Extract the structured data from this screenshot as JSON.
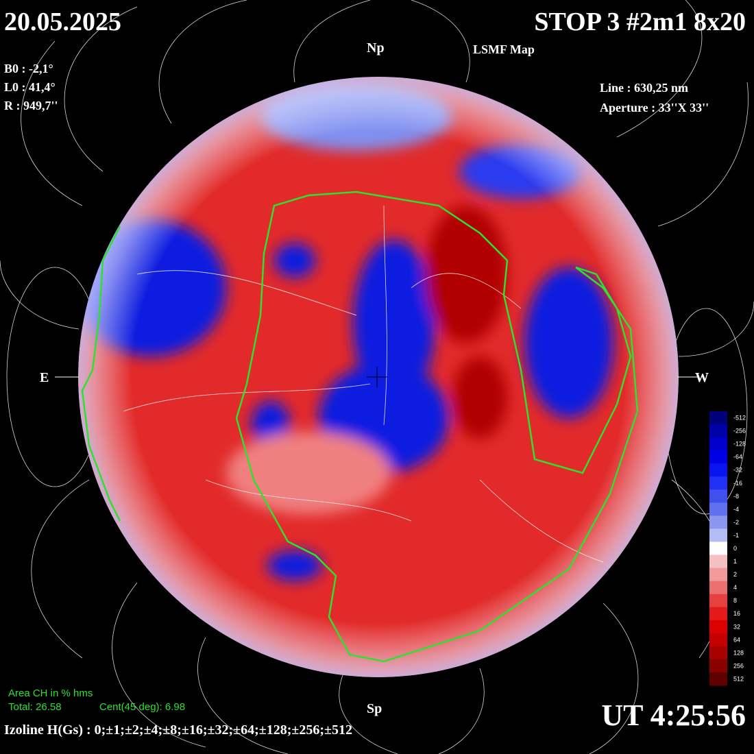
{
  "header": {
    "date": "20.05.2025",
    "title": "STOP 3 #2m1 8x20",
    "subtitle": "LSMF  Map",
    "b0": "B0 : -2,1°",
    "l0": "L0 : 41,4°",
    "r": "R  : 949,7''",
    "line": "Line :  630,25 nm",
    "aperture": "Aperture : 33''X 33''"
  },
  "directions": {
    "north": "Np",
    "south": "Sp",
    "east": "E",
    "west": "W"
  },
  "colorbar": {
    "labels": [
      -512,
      -256,
      -128,
      -64,
      -32,
      -16,
      -8,
      -4,
      -2,
      -1,
      0,
      1,
      2,
      4,
      8,
      16,
      32,
      64,
      128,
      256,
      512
    ],
    "colors": [
      "#00007a",
      "#0000a8",
      "#0000cc",
      "#0000e6",
      "#0a14f0",
      "#2030f5",
      "#4050f0",
      "#6070ee",
      "#8a96f0",
      "#b4bcf5",
      "#ffffff",
      "#f5c0c0",
      "#f09a9a",
      "#ec7070",
      "#e84040",
      "#e41a1a",
      "#dc0000",
      "#c40000",
      "#a80000",
      "#880000",
      "#600000"
    ]
  },
  "footer": {
    "area_title": "Area CH in % hms",
    "total": "Total: 26.58",
    "cent": "Cent(45 deg): 6.98",
    "izoline": "Izoline H(Gs) : 0;±1;±2;±4;±8;±16;±32;±64;±128;±256;±512",
    "time": "UT 4:25:56"
  }
}
